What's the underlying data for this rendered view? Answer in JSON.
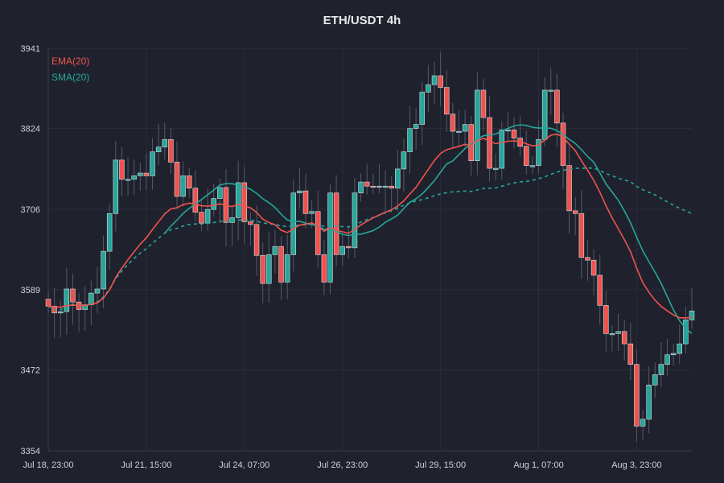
{
  "chart_data": {
    "type": "candlestick",
    "title": "ETH/USDT 4h",
    "xlabel": "",
    "ylabel": "",
    "ylim": [
      3354,
      3941
    ],
    "y_ticks": [
      3354,
      3472,
      3589,
      3706,
      3824,
      3941
    ],
    "x_tick_labels": [
      "Jul 18, 23:00",
      "Jul 21, 15:00",
      "Jul 24, 07:00",
      "Jul 26, 23:00",
      "Jul 29, 15:00",
      "Aug 1, 07:00",
      "Aug 3, 23:00"
    ],
    "x_tick_index": [
      0,
      16,
      32,
      48,
      64,
      80,
      96
    ],
    "grid": true,
    "colors": {
      "up": "#26a69a",
      "down": "#ef5350",
      "wick": "#555a66",
      "ema": "#ef5350",
      "sma": "#26a69a",
      "sma_long": "#26a69a"
    },
    "legend": {
      "placement": "top-left",
      "entries": [
        "EMA(20)",
        "SMA(20)"
      ]
    },
    "close": [
      3565,
      3555,
      3557,
      3590,
      3571,
      3560,
      3567,
      3584,
      3590,
      3645,
      3700,
      3778,
      3750,
      3750,
      3755,
      3759,
      3755,
      3790,
      3797,
      3808,
      3775,
      3725,
      3755,
      3737,
      3702,
      3686,
      3706,
      3722,
      3738,
      3687,
      3694,
      3745,
      3688,
      3684,
      3639,
      3598,
      3640,
      3652,
      3600,
      3640,
      3730,
      3733,
      3700,
      3703,
      3640,
      3600,
      3730,
      3640,
      3652,
      3650,
      3730,
      3746,
      3740,
      3739,
      3740,
      3740,
      3737,
      3765,
      3790,
      3824,
      3830,
      3877,
      3888,
      3901,
      3884,
      3845,
      3820,
      3820,
      3830,
      3777,
      3880,
      3840,
      3766,
      3766,
      3822,
      3822,
      3810,
      3798,
      3770,
      3770,
      3808,
      3880,
      3880,
      3832,
      3770,
      3704,
      3700,
      3636,
      3632,
      3610,
      3566,
      3525,
      3525,
      3528,
      3510,
      3480,
      3390,
      3400,
      3450,
      3465,
      3480,
      3494,
      3496,
      3510,
      3545,
      3558
    ]
  }
}
